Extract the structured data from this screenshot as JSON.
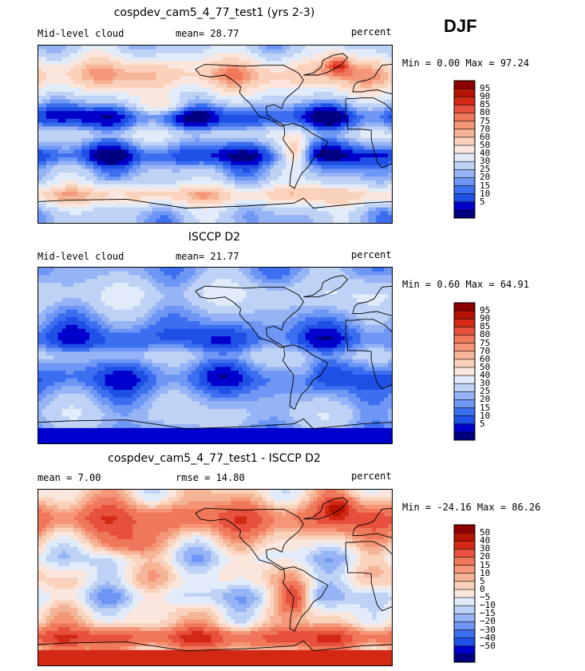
{
  "season": "DJF",
  "colors": {
    "main": [
      "#000080",
      "#0000cd",
      "#1e50e6",
      "#3c6ef0",
      "#6e96f5",
      "#96b4f5",
      "#bed2f5",
      "#e1ebfa",
      "#fae6dc",
      "#fad2bc",
      "#f5b496",
      "#f59678",
      "#f0785a",
      "#e6503c",
      "#d22814",
      "#b41400",
      "#8c0000"
    ],
    "diff": [
      "#000080",
      "#0000cd",
      "#1e50e6",
      "#3c6ef0",
      "#6e96f5",
      "#96b4f5",
      "#bed2f5",
      "#e1ebfa",
      "#fae6dc",
      "#fad2bc",
      "#f5b496",
      "#f59678",
      "#f0785a",
      "#e6503c",
      "#d22814",
      "#b41400",
      "#8c0000"
    ]
  },
  "panels": [
    {
      "title": "cospdev_cam5_4_77_test1 (yrs 2-3)",
      "left_label": "Mid-level cloud",
      "center_label": "mean=  28.77",
      "right_label": "percent",
      "minmax": "Min =   0.00 Max =  97.24",
      "colorbar": "main"
    },
    {
      "title": "ISCCP D2",
      "left_label": "Mid-level cloud",
      "center_label": "mean=  21.77",
      "right_label": "percent",
      "minmax": "Min =   0.60 Max =  64.91",
      "colorbar": "main"
    },
    {
      "title": "cospdev_cam5_4_77_test1 - ISCCP D2",
      "left_label": "mean =   7.00",
      "center_label": "rmse =  14.80",
      "right_label": "percent",
      "minmax": "Min = -24.16 Max =  86.26",
      "colorbar": "diff"
    }
  ],
  "chart_data": [
    {
      "type": "heatmap",
      "title": "cospdev_cam5_4_77_test1 (yrs 2-3)",
      "variable": "Mid-level cloud",
      "units": "percent",
      "mean": 28.77,
      "min": 0.0,
      "max": 97.24,
      "levels": [
        5,
        10,
        15,
        20,
        25,
        30,
        40,
        50,
        60,
        70,
        75,
        80,
        85,
        90,
        95
      ],
      "x": "longitude",
      "y": "latitude"
    },
    {
      "type": "heatmap",
      "title": "ISCCP D2",
      "variable": "Mid-level cloud",
      "units": "percent",
      "mean": 21.77,
      "min": 0.6,
      "max": 64.91,
      "levels": [
        5,
        10,
        15,
        20,
        25,
        30,
        40,
        50,
        60,
        70,
        75,
        80,
        85,
        90,
        95
      ],
      "x": "longitude",
      "y": "latitude"
    },
    {
      "type": "heatmap",
      "title": "cospdev_cam5_4_77_test1 - ISCCP D2",
      "units": "percent",
      "mean": 7.0,
      "rmse": 14.8,
      "min": -24.16,
      "max": 86.26,
      "levels": [
        -50,
        -40,
        -30,
        -20,
        -15,
        -10,
        -5,
        0,
        5,
        10,
        15,
        20,
        30,
        40,
        50
      ],
      "x": "longitude",
      "y": "latitude"
    }
  ],
  "colorbar_ticks": {
    "main": [
      "95",
      "90",
      "85",
      "80",
      "75",
      "70",
      "60",
      "50",
      "40",
      "30",
      "25",
      "20",
      "15",
      "10",
      "5"
    ],
    "diff": [
      "50",
      "40",
      "30",
      "20",
      "15",
      "10",
      "5",
      "0",
      "−5",
      "−10",
      "−15",
      "−20",
      "−30",
      "−40",
      "−50"
    ]
  }
}
